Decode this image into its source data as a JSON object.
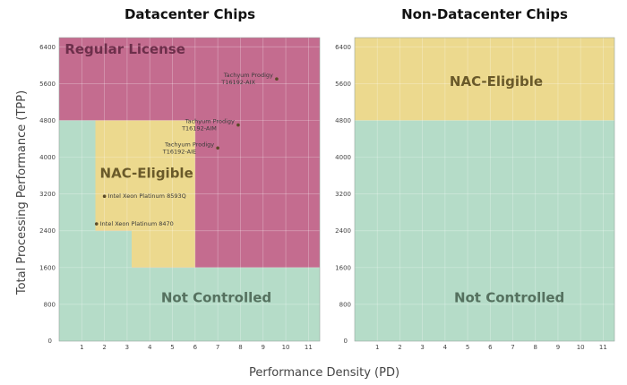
{
  "chart_data": [
    {
      "type": "region",
      "title": "Datacenter Chips",
      "xlabel": "Performance Density (PD)",
      "ylabel": "Total Processing Performance (TPP)",
      "xlim": [
        0,
        11.5
      ],
      "ylim": [
        0,
        6600
      ],
      "xticks": [
        1,
        2,
        3,
        4,
        5,
        6,
        7,
        8,
        9,
        10,
        11
      ],
      "yticks": [
        800,
        1600,
        2400,
        3200,
        4000,
        4800,
        5600,
        6400
      ],
      "origin_label": "0",
      "regions": [
        {
          "name": "Not Controlled",
          "color": "#b5dcc8",
          "polygon": [
            [
              0,
              0
            ],
            [
              11.5,
              0
            ],
            [
              11.5,
              6600
            ],
            [
              0,
              6600
            ]
          ],
          "label": "Not Controlled",
          "label_at": [
            4.5,
            850
          ],
          "label_color": "#55715f"
        },
        {
          "name": "Regular License",
          "color": "#c46c8f",
          "polygon": [
            [
              0,
              4800
            ],
            [
              1.6,
              4800
            ],
            [
              1.6,
              2400
            ],
            [
              3.2,
              2400
            ],
            [
              3.2,
              1600
            ],
            [
              11.5,
              1600
            ],
            [
              11.5,
              6600
            ],
            [
              0,
              6600
            ]
          ],
          "label": "Regular License",
          "label_at": [
            0.25,
            6250
          ],
          "label_color": "#6d2f4b"
        },
        {
          "name": "NAC-Eligible",
          "color": "#ecd98e",
          "polygon": [
            [
              1.6,
              4800
            ],
            [
              6,
              4800
            ],
            [
              6,
              1600
            ],
            [
              3.2,
              1600
            ],
            [
              3.2,
              2400
            ],
            [
              1.6,
              2400
            ]
          ],
          "label": "NAC-Eligible",
          "label_at": [
            1.8,
            3550
          ],
          "label_color": "#6a5a2a"
        }
      ],
      "points": [
        {
          "label": "Tachyum Prodigy T16192-AIX",
          "x": 9.6,
          "y": 5700,
          "label_lines": [
            "Tachyum Prodigy",
            "T16192-AIX"
          ]
        },
        {
          "label": "Tachyum Prodigy T16192-AIM",
          "x": 7.9,
          "y": 4700,
          "label_lines": [
            "Tachyum Prodigy",
            "T16192-AIM"
          ]
        },
        {
          "label": "Tachyum Prodigy T16192-AIE",
          "x": 7.0,
          "y": 4200,
          "label_lines": [
            "Tachyum Prodigy",
            "T16192-AIE"
          ]
        },
        {
          "label": "Intel Xeon Platinum 8593Q",
          "x": 2.0,
          "y": 3150,
          "label_lines": [
            "Intel Xeon Platinum 8593Q"
          ]
        },
        {
          "label": "Intel Xeon Platinum 8470",
          "x": 1.65,
          "y": 2550,
          "label_lines": [
            "Intel Xeon Platinum 8470"
          ]
        }
      ]
    },
    {
      "type": "region",
      "title": "Non-Datacenter Chips",
      "xlabel": "Performance Density (PD)",
      "xlim": [
        0,
        11.5
      ],
      "ylim": [
        0,
        6600
      ],
      "xticks": [
        1,
        2,
        3,
        4,
        5,
        6,
        7,
        8,
        9,
        10,
        11
      ],
      "yticks": [
        800,
        1600,
        2400,
        3200,
        4000,
        4800,
        5600,
        6400
      ],
      "origin_label": "0",
      "regions": [
        {
          "name": "Not Controlled",
          "color": "#b5dcc8",
          "polygon": [
            [
              0,
              0
            ],
            [
              11.5,
              0
            ],
            [
              11.5,
              4800
            ],
            [
              0,
              4800
            ]
          ],
          "label": "Not Controlled",
          "label_at": [
            4.4,
            850
          ],
          "label_color": "#55715f"
        },
        {
          "name": "NAC-Eligible",
          "color": "#ecd98e",
          "polygon": [
            [
              0,
              4800
            ],
            [
              11.5,
              4800
            ],
            [
              11.5,
              6600
            ],
            [
              0,
              6600
            ]
          ],
          "label": "NAC-Eligible",
          "label_at": [
            4.2,
            5550
          ],
          "label_color": "#6a5a2a"
        }
      ],
      "points": []
    }
  ]
}
